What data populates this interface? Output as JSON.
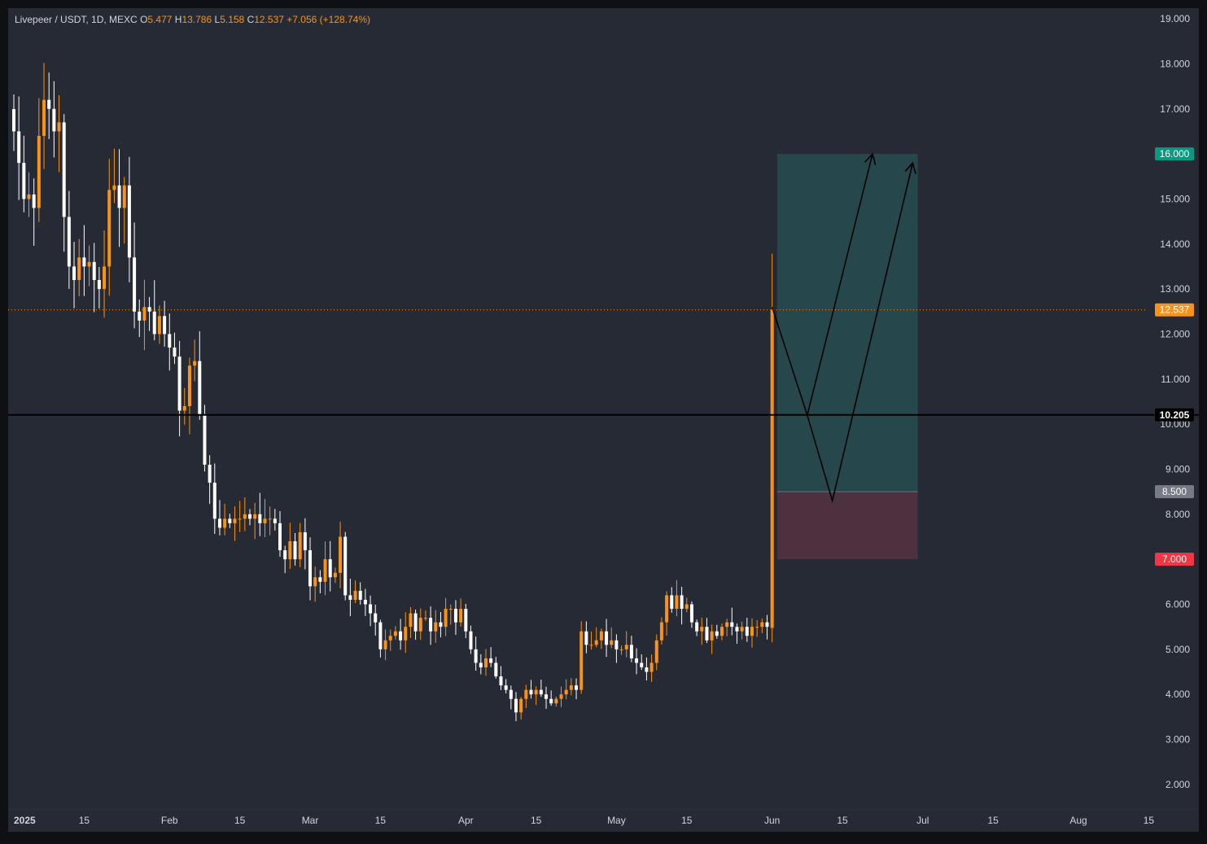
{
  "header": {
    "symbol": "Livepeer / USDT, 1D, MEXC",
    "o_label": "O",
    "o": "5.477",
    "h_label": "H",
    "h": "13.786",
    "l_label": "L",
    "l": "5.158",
    "c_label": "C",
    "c": "12.537",
    "change": "+7.056 (+128.74%)"
  },
  "colors": {
    "background": "#262a35",
    "up": "#f7931a",
    "down": "#ffffff",
    "profit_zone": "#26474b",
    "loss_zone": "#4d313f",
    "target_badge": "#089981",
    "stop_badge": "#f23645",
    "entry_badge": "#787b86",
    "last_price": "#f7931a",
    "level_line": "#000000"
  },
  "chart_data": {
    "type": "candlestick",
    "symbol": "Livepeer / USDT",
    "interval": "1D",
    "exchange": "MEXC",
    "y_ticks": [
      "2.000",
      "3.000",
      "4.000",
      "5.000",
      "6.000",
      "7.000",
      "8.000",
      "9.000",
      "10.000",
      "11.000",
      "12.000",
      "13.000",
      "14.000",
      "15.000",
      "16.000",
      "17.000",
      "18.000",
      "19.000"
    ],
    "ylim": [
      1.6,
      19.2
    ],
    "x_ticks": [
      {
        "label": "2025",
        "date": "2025-01-01"
      },
      {
        "label": "15",
        "date": "2025-01-15"
      },
      {
        "label": "Feb",
        "date": "2025-02-01"
      },
      {
        "label": "15",
        "date": "2025-02-15"
      },
      {
        "label": "Mar",
        "date": "2025-03-01"
      },
      {
        "label": "15",
        "date": "2025-03-15"
      },
      {
        "label": "Apr",
        "date": "2025-04-01"
      },
      {
        "label": "15",
        "date": "2025-04-15"
      },
      {
        "label": "May",
        "date": "2025-05-01"
      },
      {
        "label": "15",
        "date": "2025-05-15"
      },
      {
        "label": "Jun",
        "date": "2025-06-01"
      },
      {
        "label": "15",
        "date": "2025-06-15"
      },
      {
        "label": "Jul",
        "date": "2025-07-01"
      },
      {
        "label": "15",
        "date": "2025-07-15"
      },
      {
        "label": "Aug",
        "date": "2025-08-01"
      },
      {
        "label": "15",
        "date": "2025-08-15"
      }
    ],
    "first_candle_date": "2025-01-01",
    "closes": [
      16.5,
      15.8,
      15.0,
      15.1,
      14.8,
      16.4,
      17.2,
      17.0,
      16.5,
      16.7,
      14.6,
      13.5,
      13.2,
      13.7,
      13.5,
      13.6,
      13.2,
      13.0,
      13.5,
      15.2,
      15.3,
      14.8,
      15.3,
      13.7,
      12.5,
      12.3,
      12.6,
      12.5,
      12.0,
      12.4,
      12.0,
      11.7,
      11.5,
      10.3,
      10.4,
      11.3,
      11.4,
      10.2,
      9.1,
      8.7,
      7.9,
      7.7,
      7.9,
      7.8,
      7.9,
      7.9,
      8.0,
      7.9,
      8.0,
      7.8,
      7.9,
      7.9,
      7.8,
      7.2,
      7.0,
      7.4,
      7.0,
      7.6,
      7.2,
      6.4,
      6.6,
      6.5,
      7.0,
      6.6,
      6.7,
      7.5,
      6.2,
      6.1,
      6.3,
      6.1,
      6.0,
      5.8,
      5.6,
      5.0,
      5.2,
      5.3,
      5.4,
      5.2,
      5.5,
      5.8,
      5.4,
      5.7,
      5.7,
      5.4,
      5.6,
      5.5,
      5.9,
      5.9,
      5.6,
      5.9,
      5.4,
      5.0,
      4.7,
      4.6,
      4.8,
      4.7,
      4.4,
      4.2,
      4.1,
      3.9,
      3.6,
      3.9,
      4.1,
      4.0,
      4.1,
      4.0,
      3.9,
      3.8,
      3.9,
      4.0,
      4.1,
      4.2,
      4.1,
      5.4,
      5.1,
      5.1,
      5.2,
      5.4,
      5.1,
      5.2,
      5.0,
      5.0,
      5.1,
      4.8,
      4.7,
      4.6,
      4.5,
      4.7,
      5.2,
      5.6,
      6.2,
      5.9,
      6.2,
      5.9,
      6.0,
      5.6,
      5.4,
      5.5,
      5.2,
      5.4,
      5.3,
      5.5,
      5.6,
      5.5,
      5.4,
      5.5,
      5.3,
      5.5,
      5.5,
      5.6,
      5.5,
      12.537
    ],
    "last_candle": {
      "open": 5.477,
      "high": 13.786,
      "low": 5.158,
      "close": 12.537
    },
    "levels": {
      "current_price": 12.537,
      "horizontal_line": 10.205,
      "target": 16.0,
      "entry": 8.5,
      "stop": 7.0
    },
    "position_box": {
      "start_date": "2025-06-02",
      "end_date": "2025-06-30"
    },
    "projection_path_1": [
      {
        "date": "2025-06-01",
        "price": 12.6
      },
      {
        "date": "2025-06-08",
        "price": 10.2
      },
      {
        "date": "2025-06-21",
        "price": 16.0
      }
    ],
    "projection_path_2": [
      {
        "date": "2025-06-08",
        "price": 10.2
      },
      {
        "date": "2025-06-13",
        "price": 8.3
      },
      {
        "date": "2025-06-29",
        "price": 15.8
      }
    ]
  }
}
